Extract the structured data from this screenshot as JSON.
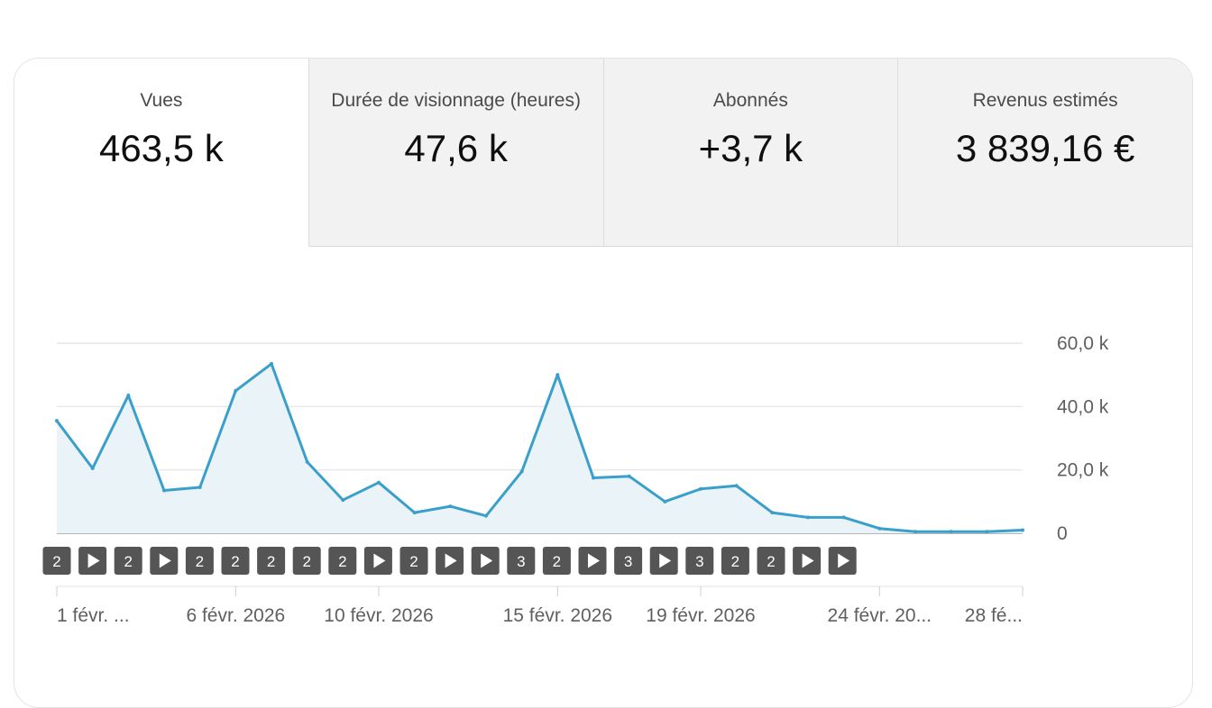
{
  "tabs": [
    {
      "label": "Vues",
      "value": "463,5 k"
    },
    {
      "label": "Durée de visionnage (heures)",
      "value": "47,6 k"
    },
    {
      "label": "Abonnés",
      "value": "+3,7 k"
    },
    {
      "label": "Revenus estimés",
      "value": "3 839,16 €"
    }
  ],
  "chart_data": {
    "type": "area",
    "series": [
      {
        "values": [
          35500,
          20500,
          43500,
          13500,
          14500,
          45000,
          53500,
          22500,
          10500,
          16000,
          6500,
          8500,
          5500,
          19500,
          50000,
          17500,
          18000,
          10000,
          14000,
          15000,
          6500,
          5000,
          5000,
          1500,
          500,
          500,
          500,
          1000
        ]
      }
    ],
    "ylim": [
      0,
      60000
    ],
    "yticks": [
      {
        "value": 60000,
        "label": "60,0 k"
      },
      {
        "value": 40000,
        "label": "40,0 k"
      },
      {
        "value": 20000,
        "label": "20,0 k"
      },
      {
        "value": 0,
        "label": "0"
      }
    ],
    "xticks": [
      {
        "day": 1,
        "label": "1 févr. ..."
      },
      {
        "day": 6,
        "label": "6 févr. 2026"
      },
      {
        "day": 10,
        "label": "10 févr. 2026"
      },
      {
        "day": 15,
        "label": "15 févr. 2026"
      },
      {
        "day": 19,
        "label": "19 févr. 2026"
      },
      {
        "day": 24,
        "label": "24 févr. 20..."
      },
      {
        "day": 28,
        "label": "28 fé..."
      }
    ],
    "markers": [
      "2",
      "play",
      "2",
      "play",
      "2",
      "2",
      "2",
      "2",
      "2",
      "play",
      "2",
      "play",
      "play",
      "3",
      "2",
      "play",
      "3",
      "play",
      "3",
      "2",
      "2",
      "play",
      "play"
    ],
    "line_color": "#3a9fca",
    "fill_color": "#eaf4f8",
    "marker_color": "#555555"
  }
}
